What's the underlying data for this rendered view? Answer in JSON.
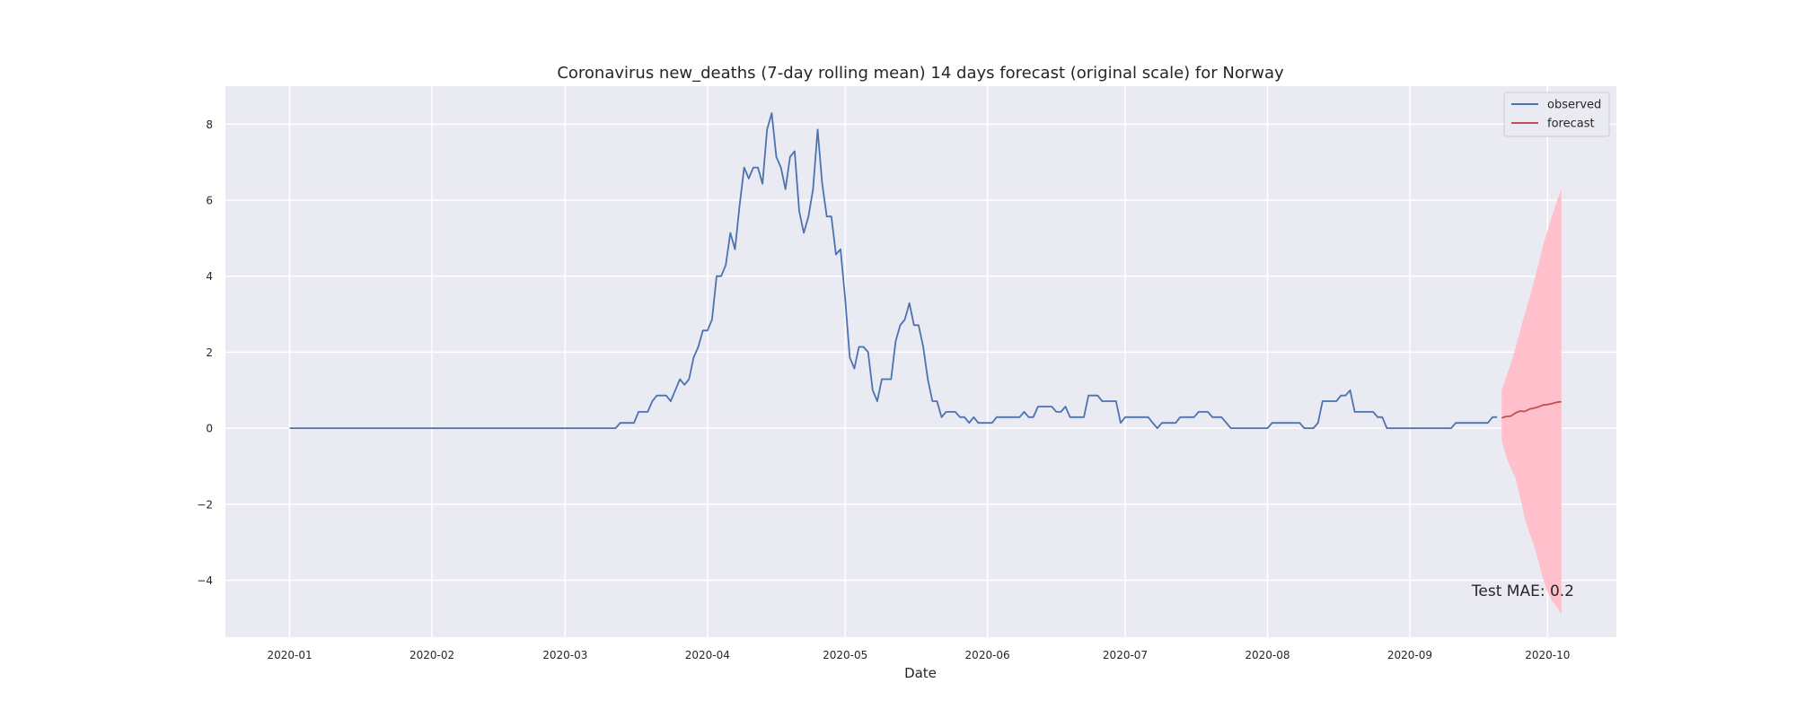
{
  "chart_data": {
    "type": "line",
    "title": "Coronavirus new_deaths (7-day rolling mean) 14 days forecast (original scale) for Norway",
    "xlabel": "Date",
    "ylabel": "",
    "xlim": [
      "2019-12-18",
      "2020-10-16"
    ],
    "ylim": [
      -5.5,
      9.0
    ],
    "grid": true,
    "legend_position": "top-right",
    "colors": {
      "background": "#eaeaf2",
      "grid": "#ffffff",
      "observed": "#4c72b0",
      "forecast": "#c44e52",
      "band": "#ffc0cb"
    },
    "x_ticks": [
      "2020-01",
      "2020-02",
      "2020-03",
      "2020-04",
      "2020-05",
      "2020-06",
      "2020-07",
      "2020-08",
      "2020-09",
      "2020-10"
    ],
    "y_ticks": [
      {
        "value": -4,
        "label": "−4"
      },
      {
        "value": -2,
        "label": "−2"
      },
      {
        "value": 0,
        "label": "0"
      },
      {
        "value": 2,
        "label": "2"
      },
      {
        "value": 4,
        "label": "4"
      },
      {
        "value": 6,
        "label": "6"
      },
      {
        "value": 8,
        "label": "8"
      }
    ],
    "annotation": "Test MAE: 0.2",
    "series": [
      {
        "name": "observed",
        "points": [
          [
            "2020-01-01",
            0
          ],
          [
            "2020-03-12",
            0
          ],
          [
            "2020-03-13",
            0.14
          ],
          [
            "2020-03-16",
            0.14
          ],
          [
            "2020-03-17",
            0.43
          ],
          [
            "2020-03-19",
            0.43
          ],
          [
            "2020-03-20",
            0.71
          ],
          [
            "2020-03-21",
            0.86
          ],
          [
            "2020-03-23",
            0.86
          ],
          [
            "2020-03-24",
            0.71
          ],
          [
            "2020-03-25",
            1.0
          ],
          [
            "2020-03-26",
            1.29
          ],
          [
            "2020-03-27",
            1.14
          ],
          [
            "2020-03-28",
            1.29
          ],
          [
            "2020-03-29",
            1.86
          ],
          [
            "2020-03-30",
            2.14
          ],
          [
            "2020-03-31",
            2.57
          ],
          [
            "2020-04-01",
            2.57
          ],
          [
            "2020-04-02",
            2.86
          ],
          [
            "2020-04-03",
            4.0
          ],
          [
            "2020-04-04",
            4.0
          ],
          [
            "2020-04-05",
            4.29
          ],
          [
            "2020-04-06",
            5.14
          ],
          [
            "2020-04-07",
            4.71
          ],
          [
            "2020-04-08",
            5.86
          ],
          [
            "2020-04-09",
            6.86
          ],
          [
            "2020-04-10",
            6.57
          ],
          [
            "2020-04-11",
            6.86
          ],
          [
            "2020-04-12",
            6.86
          ],
          [
            "2020-04-13",
            6.43
          ],
          [
            "2020-04-14",
            7.86
          ],
          [
            "2020-04-15",
            8.29
          ],
          [
            "2020-04-16",
            7.14
          ],
          [
            "2020-04-17",
            6.86
          ],
          [
            "2020-04-18",
            6.29
          ],
          [
            "2020-04-19",
            7.14
          ],
          [
            "2020-04-20",
            7.29
          ],
          [
            "2020-04-21",
            5.71
          ],
          [
            "2020-04-22",
            5.14
          ],
          [
            "2020-04-23",
            5.57
          ],
          [
            "2020-04-24",
            6.29
          ],
          [
            "2020-04-25",
            7.86
          ],
          [
            "2020-04-26",
            6.43
          ],
          [
            "2020-04-27",
            5.57
          ],
          [
            "2020-04-28",
            5.57
          ],
          [
            "2020-04-29",
            4.57
          ],
          [
            "2020-04-30",
            4.71
          ],
          [
            "2020-05-01",
            3.43
          ],
          [
            "2020-05-02",
            1.86
          ],
          [
            "2020-05-03",
            1.57
          ],
          [
            "2020-05-04",
            2.14
          ],
          [
            "2020-05-05",
            2.14
          ],
          [
            "2020-05-06",
            2.0
          ],
          [
            "2020-05-07",
            1.0
          ],
          [
            "2020-05-08",
            0.71
          ],
          [
            "2020-05-09",
            1.29
          ],
          [
            "2020-05-11",
            1.29
          ],
          [
            "2020-05-12",
            2.29
          ],
          [
            "2020-05-13",
            2.71
          ],
          [
            "2020-05-14",
            2.86
          ],
          [
            "2020-05-15",
            3.29
          ],
          [
            "2020-05-16",
            2.71
          ],
          [
            "2020-05-17",
            2.71
          ],
          [
            "2020-05-18",
            2.14
          ],
          [
            "2020-05-19",
            1.29
          ],
          [
            "2020-05-20",
            0.71
          ],
          [
            "2020-05-21",
            0.71
          ],
          [
            "2020-05-22",
            0.29
          ],
          [
            "2020-05-23",
            0.43
          ],
          [
            "2020-05-25",
            0.43
          ],
          [
            "2020-05-26",
            0.29
          ],
          [
            "2020-05-27",
            0.29
          ],
          [
            "2020-05-28",
            0.14
          ],
          [
            "2020-05-29",
            0.29
          ],
          [
            "2020-05-30",
            0.14
          ],
          [
            "2020-06-02",
            0.14
          ],
          [
            "2020-06-03",
            0.29
          ],
          [
            "2020-06-08",
            0.29
          ],
          [
            "2020-06-09",
            0.43
          ],
          [
            "2020-06-10",
            0.29
          ],
          [
            "2020-06-11",
            0.29
          ],
          [
            "2020-06-12",
            0.57
          ],
          [
            "2020-06-15",
            0.57
          ],
          [
            "2020-06-16",
            0.43
          ],
          [
            "2020-06-17",
            0.43
          ],
          [
            "2020-06-18",
            0.57
          ],
          [
            "2020-06-19",
            0.29
          ],
          [
            "2020-06-22",
            0.29
          ],
          [
            "2020-06-23",
            0.86
          ],
          [
            "2020-06-25",
            0.86
          ],
          [
            "2020-06-26",
            0.71
          ],
          [
            "2020-06-29",
            0.71
          ],
          [
            "2020-06-30",
            0.14
          ],
          [
            "2020-07-01",
            0.29
          ],
          [
            "2020-07-06",
            0.29
          ],
          [
            "2020-07-07",
            0.14
          ],
          [
            "2020-07-08",
            0.0
          ],
          [
            "2020-07-09",
            0.14
          ],
          [
            "2020-07-12",
            0.14
          ],
          [
            "2020-07-13",
            0.29
          ],
          [
            "2020-07-16",
            0.29
          ],
          [
            "2020-07-17",
            0.43
          ],
          [
            "2020-07-19",
            0.43
          ],
          [
            "2020-07-20",
            0.29
          ],
          [
            "2020-07-22",
            0.29
          ],
          [
            "2020-07-24",
            0.0
          ],
          [
            "2020-08-01",
            0.0
          ],
          [
            "2020-08-02",
            0.14
          ],
          [
            "2020-08-08",
            0.14
          ],
          [
            "2020-08-09",
            0.0
          ],
          [
            "2020-08-11",
            0.0
          ],
          [
            "2020-08-12",
            0.14
          ],
          [
            "2020-08-13",
            0.71
          ],
          [
            "2020-08-16",
            0.71
          ],
          [
            "2020-08-17",
            0.86
          ],
          [
            "2020-08-18",
            0.86
          ],
          [
            "2020-08-19",
            1.0
          ],
          [
            "2020-08-20",
            0.43
          ],
          [
            "2020-08-24",
            0.43
          ],
          [
            "2020-08-25",
            0.29
          ],
          [
            "2020-08-26",
            0.29
          ],
          [
            "2020-08-27",
            0.0
          ],
          [
            "2020-09-10",
            0.0
          ],
          [
            "2020-09-11",
            0.14
          ],
          [
            "2020-09-18",
            0.14
          ],
          [
            "2020-09-19",
            0.29
          ],
          [
            "2020-09-20",
            0.29
          ]
        ]
      },
      {
        "name": "forecast",
        "points": [
          [
            "2020-09-21",
            0.27
          ],
          [
            "2020-09-22",
            0.31
          ],
          [
            "2020-09-23",
            0.32
          ],
          [
            "2020-09-24",
            0.4
          ],
          [
            "2020-09-25",
            0.45
          ],
          [
            "2020-09-26",
            0.44
          ],
          [
            "2020-09-27",
            0.5
          ],
          [
            "2020-09-28",
            0.53
          ],
          [
            "2020-09-29",
            0.56
          ],
          [
            "2020-09-30",
            0.61
          ],
          [
            "2020-10-01",
            0.62
          ],
          [
            "2020-10-02",
            0.65
          ],
          [
            "2020-10-03",
            0.68
          ],
          [
            "2020-10-04",
            0.7
          ]
        ],
        "upper": [
          1.0,
          1.35,
          1.7,
          2.1,
          2.55,
          3.0,
          3.4,
          3.85,
          4.3,
          4.8,
          5.2,
          5.6,
          5.95,
          6.3
        ],
        "lower": [
          -0.3,
          -0.75,
          -1.05,
          -1.3,
          -1.8,
          -2.35,
          -2.75,
          -3.05,
          -3.5,
          -3.95,
          -4.3,
          -4.55,
          -4.7,
          -4.9
        ]
      }
    ]
  }
}
